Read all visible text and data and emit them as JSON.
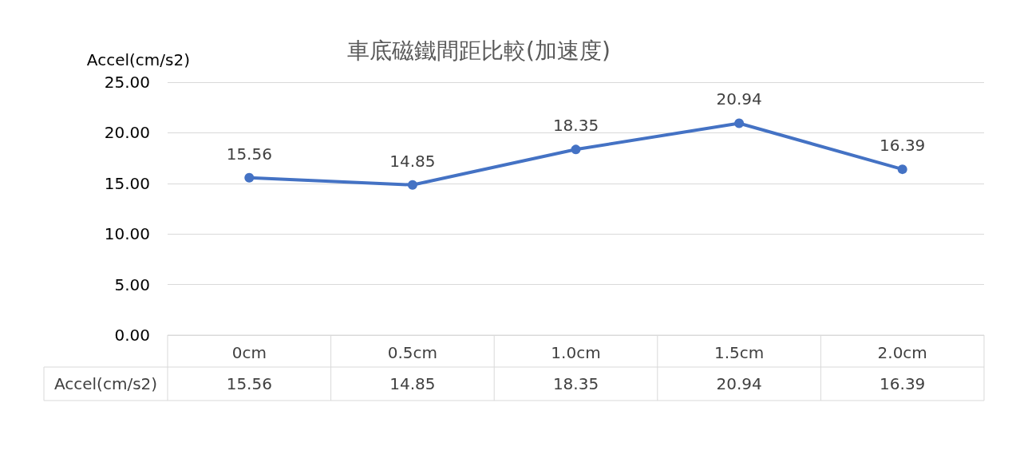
{
  "chart_data": {
    "type": "line",
    "title": "車底磁鐵間距比較(加速度)",
    "ylabel": "Accel(cm/s2)",
    "categories": [
      "0cm",
      "0.5cm",
      "1.0cm",
      "1.5cm",
      "2.0cm"
    ],
    "series": [
      {
        "name": "Accel(cm/s2)",
        "color": "#4472c4",
        "values": [
          15.56,
          14.85,
          18.35,
          20.94,
          16.39
        ],
        "value_labels": [
          "15.56",
          "14.85",
          "18.35",
          "20.94",
          "16.39"
        ]
      }
    ],
    "ylim": [
      0,
      25
    ],
    "yticks": [
      {
        "value": 0,
        "label": "0.00"
      },
      {
        "value": 5,
        "label": "5.00"
      },
      {
        "value": 10,
        "label": "10.00"
      },
      {
        "value": 15,
        "label": "15.00"
      },
      {
        "value": 20,
        "label": "20.00"
      },
      {
        "value": 25,
        "label": "25.00"
      }
    ],
    "annotations": [
      "15.56",
      "14.85",
      "18.35",
      "20.94",
      "16.39"
    ],
    "grid": true,
    "marker": "circle",
    "line_style": "solid"
  }
}
